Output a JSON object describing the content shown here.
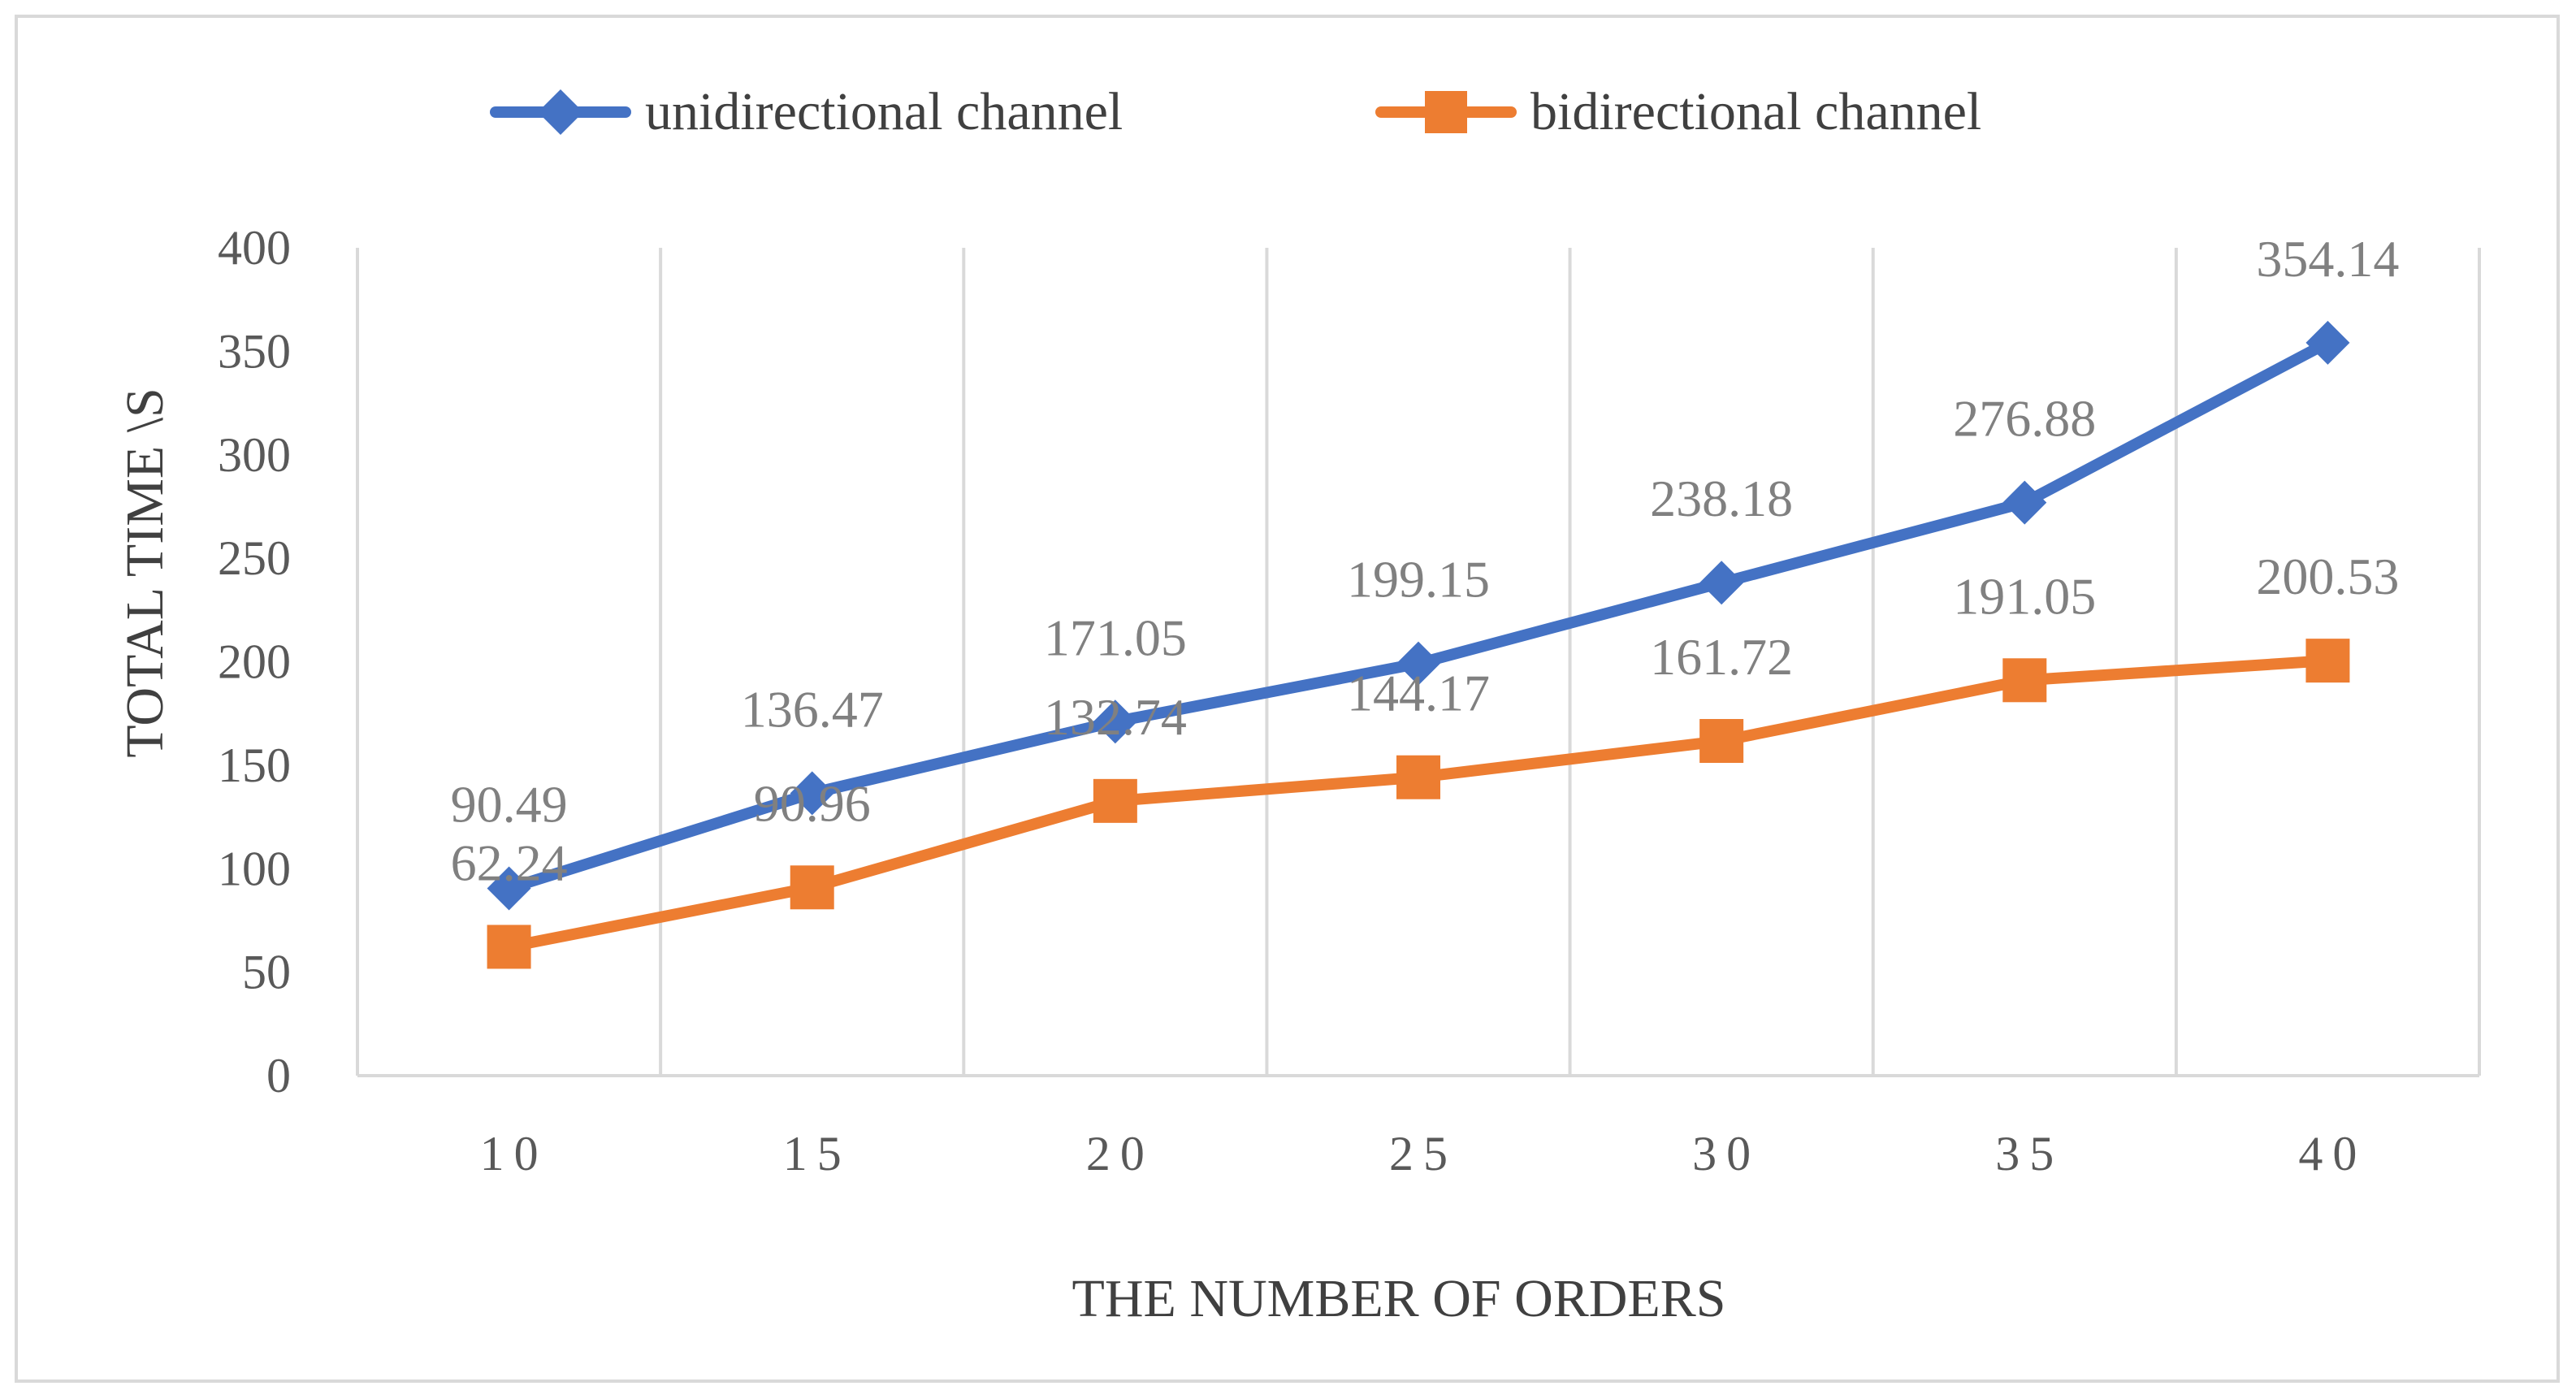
{
  "chart_data": {
    "type": "line",
    "title": "",
    "xlabel": "THE NUMBER OF ORDERS",
    "ylabel": "TOTAL TIME  \\S",
    "categories": [
      "10",
      "15",
      "20",
      "25",
      "30",
      "35",
      "40"
    ],
    "ylim": [
      0,
      400
    ],
    "yticks": [
      0,
      50,
      100,
      150,
      200,
      250,
      300,
      350,
      400
    ],
    "grid": "vertical",
    "legend_position": "top-center",
    "series": [
      {
        "name": "unidirectional channel",
        "values": [
          90.49,
          136.47,
          171.05,
          199.15,
          238.18,
          276.88,
          354.14
        ],
        "labels": [
          "90.49",
          "136.47",
          "171.05",
          "199.15",
          "238.18",
          "276.88",
          "354.14"
        ],
        "color": "#4472C4",
        "marker": "diamond"
      },
      {
        "name": "bidirectional channel",
        "values": [
          62.24,
          90.96,
          132.74,
          144.17,
          161.72,
          191.05,
          200.53
        ],
        "labels": [
          "62.24",
          "90.96",
          "132.74",
          "144.17",
          "161.72",
          "191.05",
          "200.53"
        ],
        "color": "#ED7D31",
        "marker": "square"
      }
    ]
  }
}
